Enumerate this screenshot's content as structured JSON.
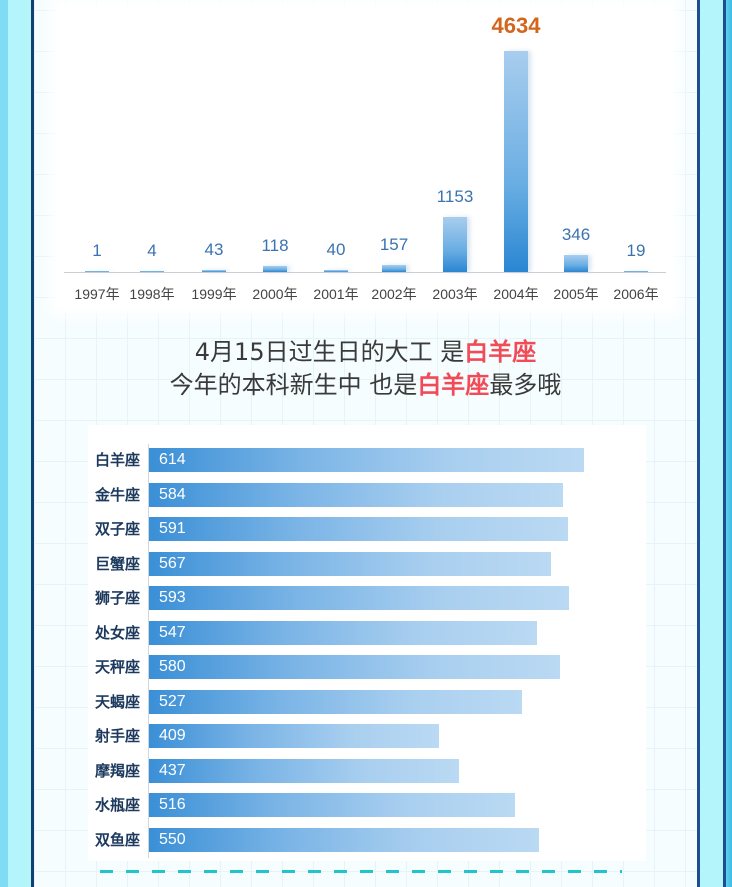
{
  "headline": {
    "line1_prefix": "4月15日过生日的大工 是",
    "line1_highlight": "白羊座",
    "line2_prefix": "今年的本科新生中 也是",
    "line2_highlight": "白羊座",
    "line2_suffix": "最多哦"
  },
  "colors": {
    "highlight_red": "#f24b57",
    "peak_label": "#d2661c",
    "value_label": "#3a73b0",
    "bar_blue": "#3a8fd6",
    "frame_cyan": "#b3f5fb",
    "frame_navy": "#0f3f73",
    "dash_teal": "#22c4c9"
  },
  "chart_data": [
    {
      "type": "bar",
      "title": "",
      "categories": [
        "1997年",
        "1998年",
        "1999年",
        "2000年",
        "2001年",
        "2002年",
        "2003年",
        "2004年",
        "2005年",
        "2006年"
      ],
      "values": [
        1,
        4,
        43,
        118,
        40,
        157,
        1153,
        4634,
        346,
        19
      ],
      "highlight": "2004年",
      "xlabel": "",
      "ylabel": "",
      "ylim": [
        0,
        4634
      ],
      "grid": false,
      "data_labels": [
        "1",
        "4",
        "43",
        "118",
        "40",
        "157",
        "1153",
        "4634",
        "346",
        "19"
      ]
    },
    {
      "type": "bar",
      "orientation": "horizontal",
      "title": "",
      "categories": [
        "白羊座",
        "金牛座",
        "双子座",
        "巨蟹座",
        "狮子座",
        "处女座",
        "天秤座",
        "天蝎座",
        "射手座",
        "摩羯座",
        "水瓶座",
        "双鱼座"
      ],
      "values": [
        614,
        584,
        591,
        567,
        593,
        547,
        580,
        527,
        409,
        437,
        516,
        550
      ],
      "data_labels": [
        "614",
        "584",
        "591",
        "567",
        "593",
        "547",
        "580",
        "527",
        "409",
        "437",
        "516",
        "550"
      ],
      "xlabel": "",
      "ylabel": "",
      "xlim": [
        0,
        614
      ],
      "grid": false
    }
  ]
}
